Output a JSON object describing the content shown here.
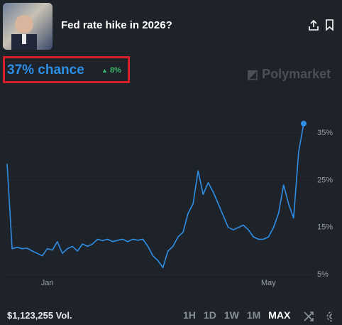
{
  "header": {
    "title": "Fed rate hike in 2026?"
  },
  "summary": {
    "chance": "37% chance",
    "change": "8%"
  },
  "brand": "Polymarket",
  "chart_data": {
    "type": "line",
    "color": "#2e8ee6",
    "grid": true,
    "categories": [
      null,
      null,
      null,
      null,
      null,
      null,
      null,
      null,
      "Jan",
      null,
      null,
      null,
      null,
      null,
      null,
      null,
      null,
      null,
      null,
      null,
      null,
      null,
      null,
      null,
      null,
      null,
      null,
      null,
      null,
      null,
      null,
      null,
      null,
      null,
      null,
      null,
      null,
      null,
      null,
      null,
      null,
      null,
      null,
      null,
      null,
      null,
      null,
      null,
      null,
      null,
      null,
      null,
      "May",
      null,
      null,
      null,
      null,
      null,
      null,
      null
    ],
    "values": [
      28.5,
      10.5,
      10.8,
      10.5,
      10.6,
      10,
      9.5,
      9,
      10.5,
      10.2,
      12,
      9.5,
      10.5,
      11,
      10,
      11.5,
      11,
      11.5,
      12.5,
      12.2,
      12.5,
      12,
      12.3,
      12.5,
      12,
      12.5,
      12.3,
      12.5,
      11,
      9,
      8,
      6.5,
      10,
      11,
      13,
      14,
      18,
      20,
      27,
      22,
      24.5,
      22.5,
      20,
      17.5,
      15,
      14.5,
      15,
      15.5,
      14.5,
      13,
      12.5,
      12.5,
      13,
      15,
      18,
      24,
      20,
      17,
      31,
      37
    ],
    "ylim": [
      3,
      39
    ],
    "yticks": [
      {
        "value": 5,
        "label": "5%"
      },
      {
        "value": 15,
        "label": "15%"
      },
      {
        "value": 25,
        "label": "25%"
      },
      {
        "value": 35,
        "label": "35%"
      }
    ]
  },
  "footer": {
    "volume": "$1,123,255 Vol.",
    "ranges": [
      "1H",
      "1D",
      "1W",
      "1M",
      "MAX"
    ]
  }
}
